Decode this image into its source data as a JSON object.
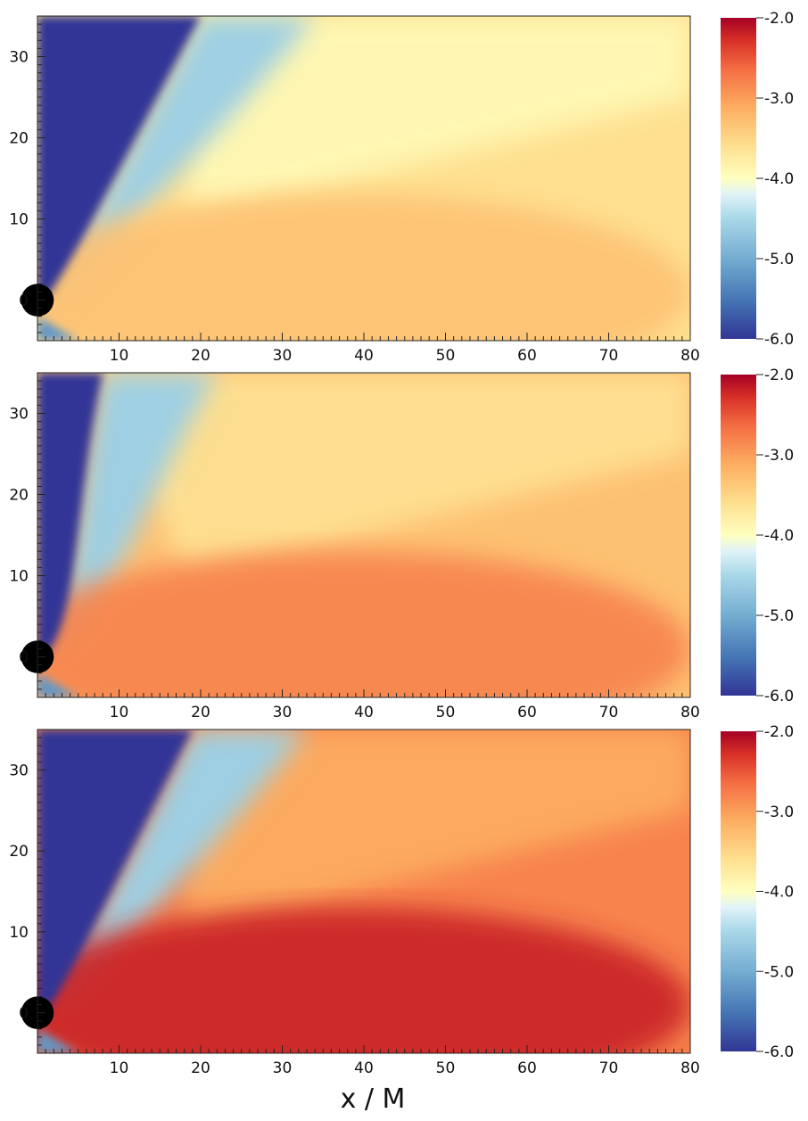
{
  "chart_data": [
    {
      "type": "heatmap",
      "panel": "top",
      "xlim": [
        0,
        80
      ],
      "ylim": [
        -5,
        35
      ],
      "x_ticks": [
        10,
        20,
        30,
        40,
        50,
        60,
        70,
        80
      ],
      "y_ticks": [
        0,
        10,
        20,
        30
      ],
      "colorbar": {
        "range": [
          -6.0,
          -2.0
        ],
        "ticks": [
          "-2.0",
          "-3.0",
          "-4.0",
          "-5.0",
          "-6.0"
        ],
        "colormap": "RdYlBu_r"
      },
      "field_level": -3.6,
      "jet_level": -3.3,
      "funnel_boundary_top_x": 20
    },
    {
      "type": "heatmap",
      "panel": "middle",
      "xlim": [
        0,
        80
      ],
      "ylim": [
        -5,
        35
      ],
      "x_ticks": [
        10,
        20,
        30,
        40,
        50,
        60,
        70,
        80
      ],
      "y_ticks": [
        0,
        10,
        20,
        30
      ],
      "colorbar": {
        "range": [
          -6.0,
          -2.0
        ],
        "ticks": [
          "-2.0",
          "-3.0",
          "-4.0",
          "-5.0",
          "-6.0"
        ],
        "colormap": "RdYlBu_r"
      },
      "field_level": -3.3,
      "jet_level": -2.8,
      "funnel_boundary_top_x": 8
    },
    {
      "type": "heatmap",
      "panel": "bottom",
      "xlim": [
        0,
        80
      ],
      "ylim": [
        -5,
        35
      ],
      "x_ticks": [
        10,
        20,
        30,
        40,
        50,
        60,
        70,
        80
      ],
      "y_ticks": [
        0,
        10,
        20,
        30
      ],
      "colorbar": {
        "range": [
          -6.0,
          -2.0
        ],
        "ticks": [
          "-2.0",
          "-3.0",
          "-4.0",
          "-5.0",
          "-6.0"
        ],
        "colormap": "RdYlBu_r"
      },
      "field_level": -2.8,
      "jet_level": -2.2,
      "funnel_boundary_top_x": 19
    }
  ],
  "xlabel": "x / M",
  "colors": {
    "low": "#313695",
    "mid": "#ffffbf",
    "high": "#a50026",
    "black_hole": "#000000"
  }
}
